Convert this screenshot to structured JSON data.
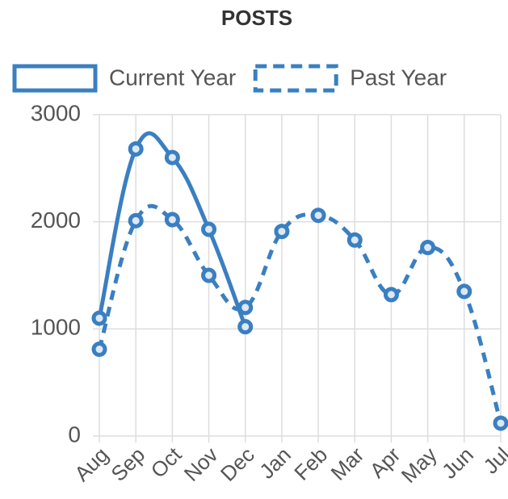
{
  "chart_data": {
    "type": "line",
    "title": "POSTS",
    "categories": [
      "Aug",
      "Sep",
      "Oct",
      "Nov",
      "Dec",
      "Jan",
      "Feb",
      "Mar",
      "Apr",
      "May",
      "Jun",
      "Jul"
    ],
    "series": [
      {
        "name": "Current Year",
        "color": "#3a7fc1",
        "dashed": false,
        "values": [
          1100,
          2680,
          2600,
          1930,
          1020,
          null,
          null,
          null,
          null,
          null,
          null,
          null
        ]
      },
      {
        "name": "Past Year",
        "color": "#3a7fc1",
        "dashed": true,
        "values": [
          810,
          2010,
          2020,
          1500,
          1200,
          1910,
          2060,
          1830,
          1320,
          1760,
          1350,
          120
        ]
      }
    ],
    "ylim": [
      0,
      3000
    ],
    "yticks": [
      0,
      1000,
      2000,
      3000
    ],
    "grid": true,
    "legend": "top"
  }
}
